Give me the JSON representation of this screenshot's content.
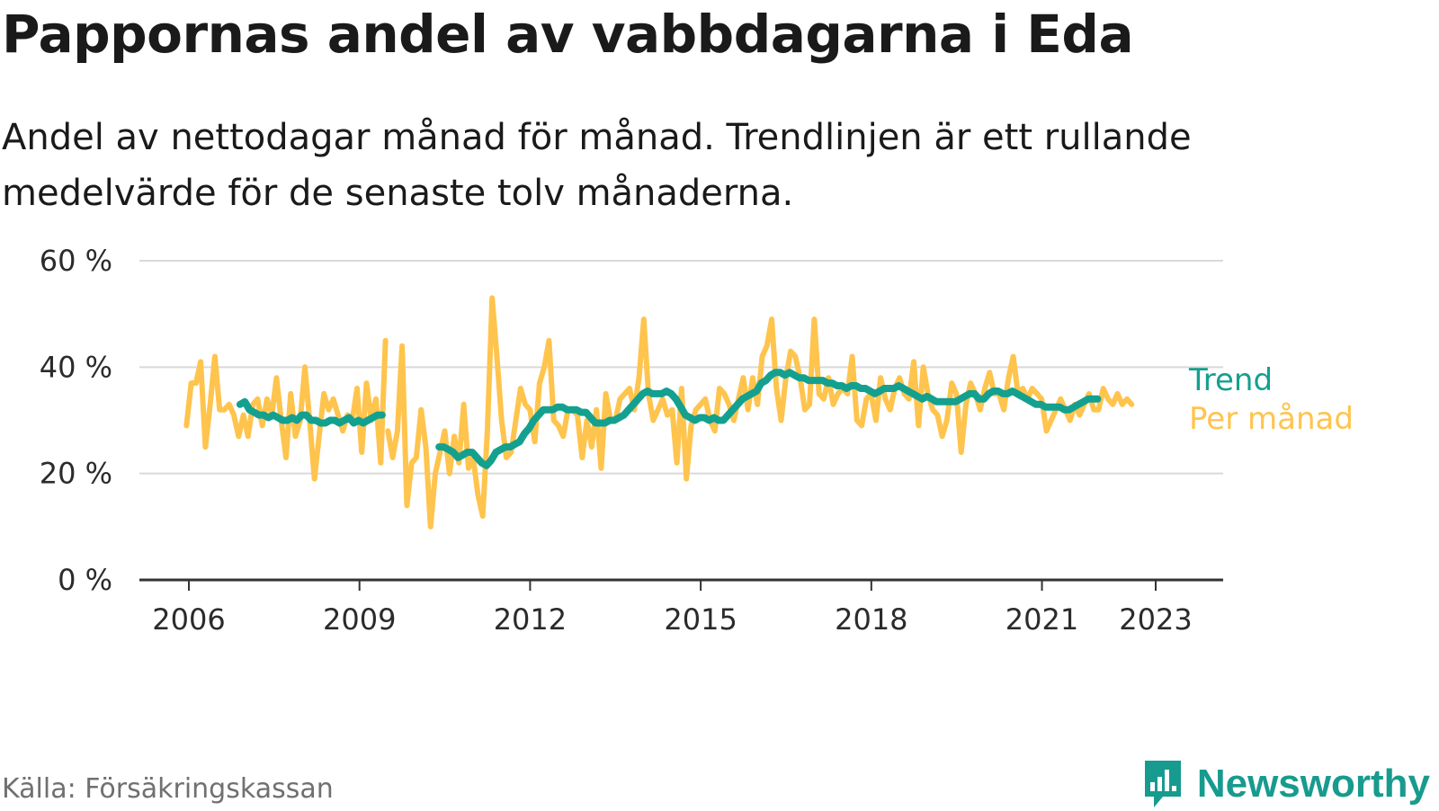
{
  "title": "Pappornas andel av vabbdagarna i Eda",
  "subtitle": "Andel av nettodagar månad för månad. Trendlinjen är ett rullande medelvärde för de senaste tolv månaderna.",
  "source": "Källa: Försäkringskassan",
  "brand": {
    "name": "Newsworthy",
    "icon": "newsworthy-chart-icon"
  },
  "colors": {
    "trend": "#14a08f",
    "monthly": "#ffc44d",
    "grid": "#d9d9d9",
    "axis": "#333333",
    "brand": "#179b8e"
  },
  "chart_data": {
    "type": "line",
    "ylim": [
      0,
      60
    ],
    "yticks": [
      0,
      20,
      40,
      60
    ],
    "ytick_labels": [
      "0 %",
      "20 %",
      "40 %",
      "60 %"
    ],
    "x_start": 2006.0,
    "x_end": 2024.2,
    "xticks": [
      2006,
      2009,
      2012,
      2015,
      2018,
      2021,
      2023
    ],
    "xtick_labels": [
      "2006",
      "2009",
      "2012",
      "2015",
      "2018",
      "2021",
      "2023"
    ],
    "grid": true,
    "legend": "right",
    "series": [
      {
        "name": "Per månad",
        "role": "monthly",
        "segments": [
          {
            "start": 2005.958,
            "step": 0.0833,
            "values": [
              29,
              37,
              37,
              41,
              25,
              33,
              42,
              32,
              32,
              33,
              31,
              27,
              31,
              27,
              33,
              34,
              29,
              34,
              31,
              38,
              30,
              23,
              35,
              27,
              30,
              40,
              30,
              19,
              27,
              35,
              32,
              34,
              31,
              28,
              31,
              30,
              36,
              24,
              37,
              30,
              34,
              22,
              45
            ]
          },
          {
            "start": 2009.5,
            "step": 0.0833,
            "values": [
              28,
              23,
              28,
              44,
              14,
              22,
              23,
              32,
              25,
              10,
              20,
              24,
              28,
              20,
              27,
              22,
              33,
              21,
              23,
              16,
              12,
              28,
              53,
              42,
              30,
              23,
              24,
              30,
              36,
              33,
              32,
              26,
              37,
              40,
              45,
              30,
              29,
              27,
              32,
              32,
              31,
              23,
              30,
              25,
              32,
              21,
              35,
              30,
              30,
              34,
              35,
              36,
              32,
              38,
              49,
              35,
              30,
              32,
              34,
              31,
              32,
              22,
              36,
              19,
              29,
              32,
              33,
              34,
              30,
              28,
              36,
              35,
              33,
              30,
              34,
              38,
              32,
              38,
              33,
              42,
              44,
              49,
              36,
              30,
              38,
              43,
              42,
              38,
              32,
              33,
              49,
              35,
              34,
              38,
              33,
              35,
              36,
              35,
              42,
              30,
              29,
              34,
              35,
              30,
              38,
              34,
              32,
              36,
              38,
              35,
              34,
              41,
              29,
              40,
              35,
              32,
              31,
              27,
              30,
              37,
              35,
              24,
              33,
              37,
              35,
              32,
              36,
              39,
              35,
              35,
              32,
              38,
              42,
              35,
              36,
              34,
              36,
              35,
              34,
              28,
              30,
              32,
              34,
              32,
              30,
              33,
              31,
              33,
              35,
              32,
              32,
              36,
              34,
              33,
              35,
              33,
              34,
              33
            ]
          }
        ]
      },
      {
        "name": "Trend",
        "role": "trend",
        "segments": [
          {
            "start": 2006.9,
            "step": 0.0833,
            "values": [
              33,
              33.5,
              32,
              31.5,
              31,
              31,
              30.5,
              31,
              30.5,
              30,
              30,
              30.5,
              30,
              31,
              31,
              30,
              30,
              29.5,
              29.5,
              30,
              30,
              29.5,
              30,
              30.5,
              29.5,
              30,
              29.5,
              30,
              30.5,
              31,
              31
            ]
          },
          {
            "start": 2010.4,
            "step": 0.0833,
            "values": [
              25,
              25,
              24.5,
              24,
              23,
              23.5,
              24,
              24,
              23,
              22,
              21.5,
              22.5,
              24,
              24.5,
              25,
              25,
              25.5,
              26,
              27.5,
              28.5,
              30,
              31,
              32,
              32,
              32,
              32.5,
              32.5,
              32,
              32,
              32,
              31.5,
              31.5,
              30.5,
              29.5,
              29.5,
              29.5,
              30,
              30,
              30.5,
              31,
              32,
              33,
              34,
              35,
              35.5,
              35,
              35,
              35,
              35.5,
              35,
              34,
              32.5,
              31,
              30.5,
              30,
              30.5,
              30.5,
              30,
              30.5,
              30,
              30,
              31,
              32,
              33,
              34,
              34.5,
              35,
              35.5,
              37,
              37.5,
              38.5,
              39,
              39,
              38.5,
              39,
              38.5,
              38,
              38,
              37.5,
              37.5,
              37.5,
              37.5,
              37,
              37,
              36.5,
              36.5,
              36,
              36.5,
              36.5,
              36,
              36,
              35.5,
              35,
              35.5,
              36,
              36,
              36,
              36.5,
              36,
              35.5,
              35,
              34.5,
              34,
              34.5,
              34,
              33.5,
              33.5,
              33.5,
              33.5,
              33.5,
              34,
              34.5,
              35,
              35,
              34,
              34,
              35,
              35.5,
              35.5,
              35,
              35,
              35.5,
              35,
              34.5,
              34,
              33.5,
              33,
              33,
              32.5,
              32.5,
              32.5,
              32.5,
              32,
              32,
              32.5,
              33,
              33.5,
              34,
              34,
              34
            ]
          }
        ]
      }
    ]
  }
}
